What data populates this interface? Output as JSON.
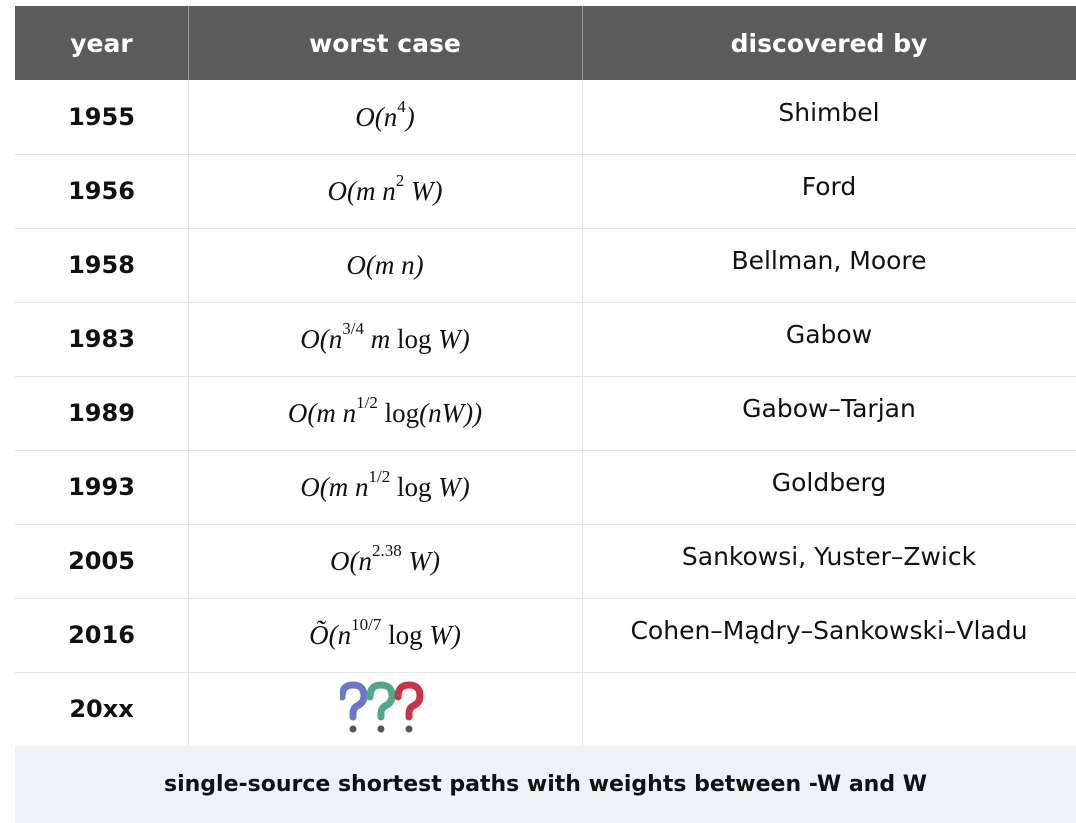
{
  "table": {
    "header": [
      "year",
      "worst case",
      "discovered by"
    ],
    "rows": [
      {
        "year": "1955",
        "worst_case": [
          {
            "text": "O(n"
          },
          {
            "sup": "4"
          },
          {
            "text": ")"
          }
        ],
        "discovered_by": "Shimbel"
      },
      {
        "year": "1956",
        "worst_case": [
          {
            "text": "O(m n"
          },
          {
            "sup": "2"
          },
          {
            "text": " W)"
          }
        ],
        "discovered_by": "Ford"
      },
      {
        "year": "1958",
        "worst_case": [
          {
            "text": "O(m n)"
          }
        ],
        "discovered_by": "Bellman, Moore"
      },
      {
        "year": "1983",
        "worst_case": [
          {
            "text": "O(n"
          },
          {
            "sup": "3/4"
          },
          {
            "text": " m"
          },
          {
            "text": " log"
          },
          {
            "text": " W)"
          }
        ],
        "discovered_by": "Gabow"
      },
      {
        "year": "1989",
        "worst_case": [
          {
            "text": "O(m n"
          },
          {
            "sup": "1/2"
          },
          {
            "text": " log"
          },
          {
            "text": "(nW))"
          }
        ],
        "discovered_by": "Gabow–Tarjan"
      },
      {
        "year": "1993",
        "worst_case": [
          {
            "text": "O(m n"
          },
          {
            "sup": "1/2"
          },
          {
            "text": " log"
          },
          {
            "text": " W)"
          }
        ],
        "discovered_by": "Goldberg"
      },
      {
        "year": "2005",
        "worst_case": [
          {
            "text": "O(n"
          },
          {
            "sup": "2.38"
          },
          {
            "text": " W)"
          }
        ],
        "discovered_by": "Sankowsi, Yuster–Zwick"
      },
      {
        "year": "2016",
        "worst_case": [
          {
            "text": "Õ(n"
          },
          {
            "sup": "10/7"
          },
          {
            "text": " log"
          },
          {
            "text": " W)"
          }
        ],
        "discovered_by": "Cohen–Mądry–Sankowski–Vladu"
      },
      {
        "year": "20xx",
        "worst_case": []
      }
    ],
    "footer": "single-source shortest paths with weights between -W and W"
  }
}
